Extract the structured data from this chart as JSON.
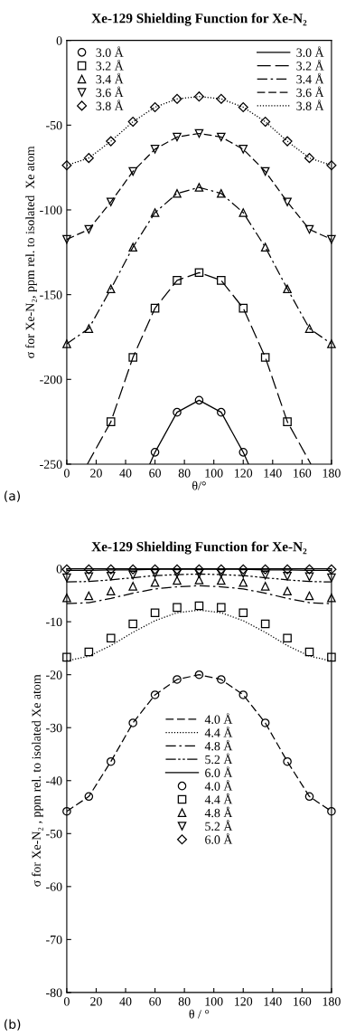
{
  "chart_data": [
    {
      "type": "line",
      "title": "Xe-129 Shielding Function for Xe-N₂",
      "xlabel": "θ/°",
      "ylabel": "σ for Xe-N₂, ppm rel. to isolated  Xe atom",
      "xlim": [
        0,
        180
      ],
      "xticks": [
        0,
        20,
        40,
        60,
        80,
        100,
        120,
        140,
        160,
        180
      ],
      "ylim": [
        -250,
        0
      ],
      "yticks": [
        -250,
        -200,
        -150,
        -100,
        -50,
        0
      ],
      "legend": "top",
      "grid": false,
      "annotations": [
        "(a)"
      ],
      "x": [
        0,
        15,
        30,
        45,
        60,
        75,
        90,
        105,
        120,
        135,
        150,
        165,
        180
      ],
      "series": [
        {
          "type": "scatter",
          "name": "3.0 Å",
          "marker": "circle",
          "color": "#000000",
          "x": [
            60,
            75,
            90,
            105,
            120
          ],
          "values": [
            -243,
            -219.4,
            -212.3,
            -219.4,
            -243
          ]
        },
        {
          "type": "scatter",
          "name": "3.2 Å",
          "marker": "square",
          "color": "#000000",
          "x": [
            30,
            45,
            60,
            75,
            90,
            105,
            120,
            135,
            150
          ],
          "values": [
            -225,
            -187,
            -158,
            -141.6,
            -137,
            -141.6,
            -158,
            -187,
            -225
          ]
        },
        {
          "type": "scatter",
          "name": "3.4 Å",
          "marker": "triangle",
          "color": "#000000",
          "values": [
            -179,
            -170,
            -146.6,
            -122,
            -101.6,
            -90.3,
            -86.7,
            -90.3,
            -101.6,
            -122,
            -146.6,
            -170,
            -179
          ]
        },
        {
          "type": "scatter",
          "name": "3.6 Å",
          "marker": "triangle_down",
          "color": "#000000",
          "values": [
            -117.4,
            -111.5,
            -95.3,
            -77.3,
            -64.2,
            -57,
            -54.9,
            -57,
            -64.2,
            -77.3,
            -95.3,
            -111.5,
            -117.4
          ]
        },
        {
          "type": "scatter",
          "name": "3.8 Å",
          "marker": "diamond",
          "color": "#000000",
          "values": [
            -73.7,
            -69.4,
            -59.5,
            -48,
            -39.4,
            -34.5,
            -33.1,
            -34.5,
            -39.4,
            -48,
            -59.5,
            -69.4,
            -73.7
          ]
        },
        {
          "name": "3.0 Å",
          "line_style": "solid",
          "color": "#000000",
          "x": [
            56.4,
            60,
            75,
            90,
            105,
            120,
            123.6
          ],
          "values": [
            -250,
            -243,
            -219.4,
            -212.3,
            -219.4,
            -243,
            -250
          ]
        },
        {
          "name": "3.2 Å",
          "line_style": "longdash",
          "color": "#000000",
          "x": [
            14,
            30,
            45,
            60,
            75,
            90,
            105,
            120,
            135,
            150,
            166
          ],
          "values": [
            -250,
            -225,
            -187,
            -158,
            -141.6,
            -137,
            -141.6,
            -158,
            -187,
            -225,
            -250
          ]
        },
        {
          "name": "3.4 Å",
          "line_style": "dashdot",
          "color": "#000000",
          "values": [
            -179,
            -170,
            -146.6,
            -122,
            -101.6,
            -90.3,
            -86.7,
            -90.3,
            -101.6,
            -122,
            -146.6,
            -170,
            -179
          ]
        },
        {
          "name": "3.6 Å",
          "line_style": "dashed",
          "color": "#000000",
          "values": [
            -117.4,
            -111.5,
            -95.3,
            -77.3,
            -64.2,
            -57,
            -54.9,
            -57,
            -64.2,
            -77.3,
            -95.3,
            -111.5,
            -117.4
          ]
        },
        {
          "name": "3.8 Å",
          "line_style": "dotted",
          "color": "#000000",
          "values": [
            -73.7,
            -69.4,
            -59.5,
            -48,
            -39.4,
            -34.5,
            -33.1,
            -34.5,
            -39.4,
            -48,
            -59.5,
            -69.4,
            -73.7
          ]
        }
      ]
    },
    {
      "type": "line",
      "title": "Xe-129 Shielding Function for Xe-N₂",
      "xlabel": "θ / °",
      "ylabel": "σ for Xe-N₂ , ppm rel. to isolated Xe atom",
      "xlim": [
        0,
        180
      ],
      "xticks": [
        0,
        20,
        40,
        60,
        80,
        100,
        120,
        140,
        160,
        180
      ],
      "ylim": [
        -80,
        0
      ],
      "yticks": [
        -80,
        -70,
        -60,
        -50,
        -40,
        -30,
        -20,
        -10,
        0
      ],
      "legend": "center",
      "grid": false,
      "annotations": [
        "(b)"
      ],
      "x": [
        0,
        15,
        30,
        45,
        60,
        75,
        90,
        105,
        120,
        135,
        150,
        165,
        180
      ],
      "series": [
        {
          "name": "4.0 Å",
          "line_style": "dashed",
          "color": "#000000",
          "values": [
            -45.8,
            -43,
            -36.4,
            -29.1,
            -23.8,
            -20.9,
            -20,
            -20.9,
            -23.8,
            -29.1,
            -36.4,
            -43,
            -45.8
          ]
        },
        {
          "name": "4.4 Å",
          "line_style": "dotted",
          "color": "#000000",
          "values": [
            -17.4,
            -16.5,
            -14.5,
            -12,
            -9.8,
            -8.3,
            -7.8,
            -8.3,
            -9.8,
            -12,
            -14.5,
            -16.5,
            -17.4
          ]
        },
        {
          "name": "4.8 Å",
          "line_style": "dashdot",
          "color": "#000000",
          "values": [
            -6.6,
            -6.4,
            -5.6,
            -4.6,
            -3.8,
            -3.4,
            -3.2,
            -3.4,
            -3.8,
            -4.6,
            -5.6,
            -6.4,
            -6.6
          ]
        },
        {
          "name": "5.2 Å",
          "line_style": "dashdotdot",
          "color": "#000000",
          "values": [
            -2.5,
            -2.4,
            -2.1,
            -1.7,
            -1.3,
            -1.1,
            -1,
            -1.1,
            -1.3,
            -1.7,
            -2.1,
            -2.4,
            -2.5
          ]
        },
        {
          "name": "6.0 Å",
          "line_style": "solid",
          "color": "#000000",
          "values": [
            -0.3,
            -0.3,
            -0.2,
            -0.2,
            -0.1,
            -0.1,
            -0.1,
            -0.1,
            -0.1,
            -0.2,
            -0.2,
            -0.3,
            -0.3
          ]
        },
        {
          "type": "scatter",
          "name": "4.0 Å",
          "marker": "circle",
          "color": "#000000",
          "values": [
            -45.8,
            -43,
            -36.4,
            -29.1,
            -23.8,
            -20.9,
            -20,
            -20.9,
            -23.8,
            -29.1,
            -36.4,
            -43,
            -45.8
          ]
        },
        {
          "type": "scatter",
          "name": "4.4 Å",
          "marker": "square",
          "color": "#000000",
          "values": [
            -16.7,
            -15.7,
            -13.1,
            -10.4,
            -8.3,
            -7.3,
            -7,
            -7.3,
            -8.3,
            -10.4,
            -13.1,
            -15.7,
            -16.7
          ]
        },
        {
          "type": "scatter",
          "name": "4.8 Å",
          "marker": "triangle",
          "color": "#000000",
          "values": [
            -5.5,
            -5.1,
            -4.2,
            -3.3,
            -2.6,
            -2.2,
            -2.1,
            -2.2,
            -2.6,
            -3.3,
            -4.2,
            -5.1,
            -5.5
          ]
        },
        {
          "type": "scatter",
          "name": "5.2 Å",
          "marker": "triangle_down",
          "color": "#000000",
          "values": [
            -1.7,
            -1.5,
            -1.4,
            -1.2,
            -0.9,
            -0.9,
            -0.9,
            -0.9,
            -0.9,
            -1.2,
            -1.4,
            -1.5,
            -1.7
          ]
        },
        {
          "type": "scatter",
          "name": "6.0 Å",
          "marker": "diamond",
          "color": "#000000",
          "values": [
            -0.1,
            -0.1,
            -0.1,
            -0.1,
            -0.1,
            -0.1,
            -0.1,
            -0.1,
            -0.1,
            -0.1,
            -0.1,
            -0.1,
            -0.1
          ]
        }
      ]
    }
  ]
}
